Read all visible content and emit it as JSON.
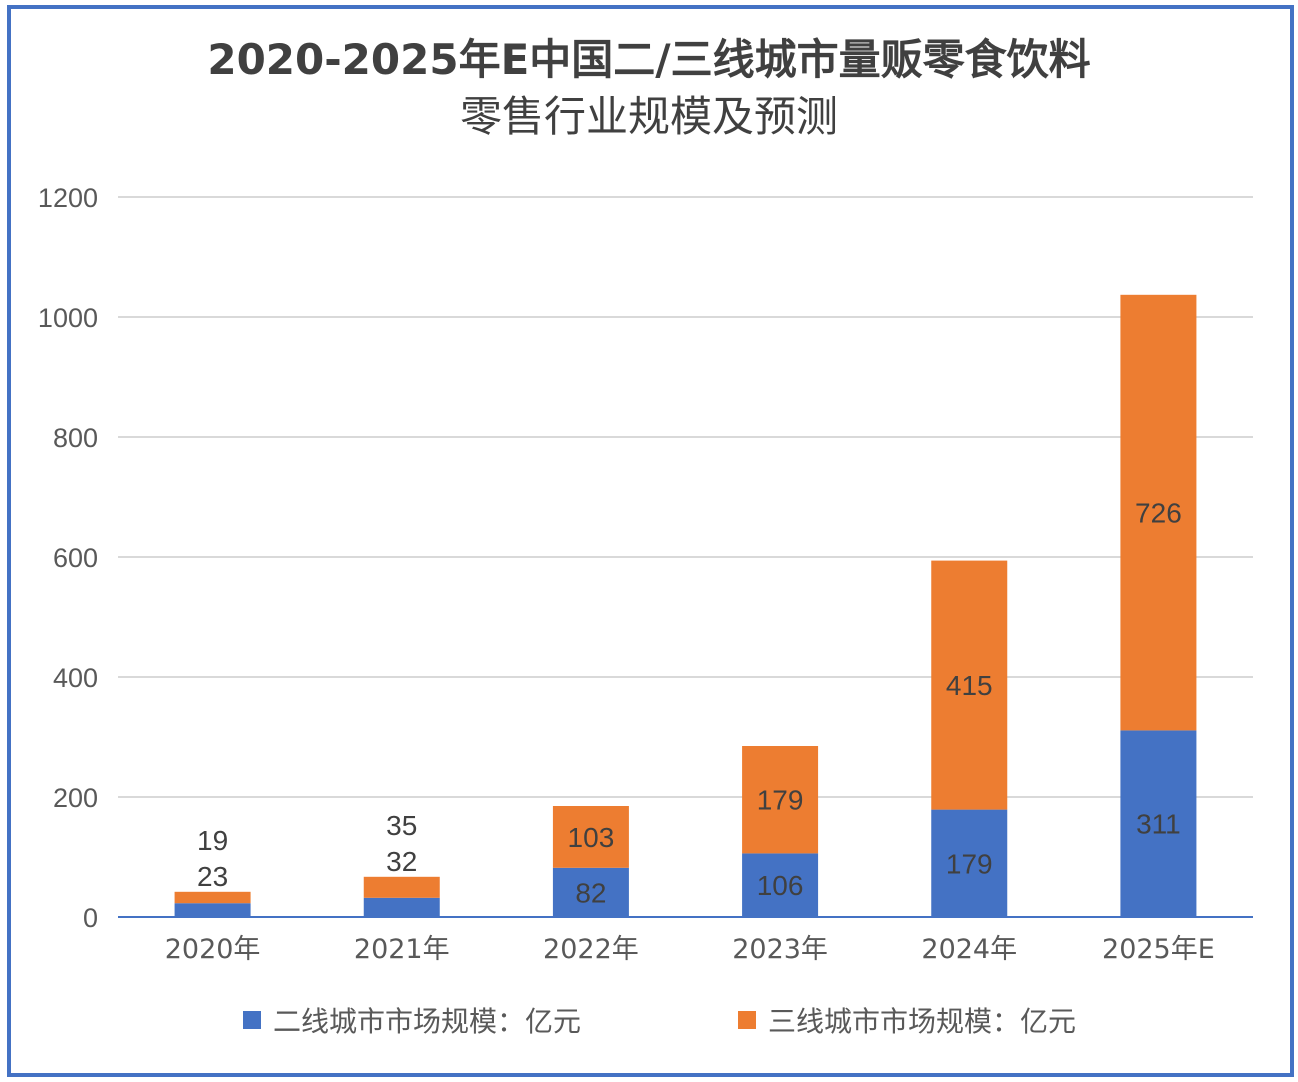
{
  "chart_data": {
    "type": "bar",
    "stacked": true,
    "title": "2020-2025年E中国二/三线城市量贩零食饮料零售行业规模及预测",
    "title_lines": [
      "2020-2025年E中国二/三线城市量贩零食饮料",
      "零售行业规模及预测"
    ],
    "categories": [
      "2020年",
      "2021年",
      "2022年",
      "2023年",
      "2024年",
      "2025年E"
    ],
    "series": [
      {
        "name": "二线城市市场规模：亿元",
        "color": "#4472c4",
        "values": [
          23,
          32,
          82,
          106,
          179,
          311
        ]
      },
      {
        "name": "三线城市市场规模：亿元",
        "color": "#ed7d31",
        "values": [
          19,
          35,
          103,
          179,
          415,
          726
        ]
      }
    ],
    "ylim": [
      0,
      1200
    ],
    "yticks": [
      0,
      200,
      400,
      600,
      800,
      1000,
      1200
    ],
    "grid": true,
    "legend": "bottom",
    "xlabel": "",
    "ylabel": ""
  }
}
